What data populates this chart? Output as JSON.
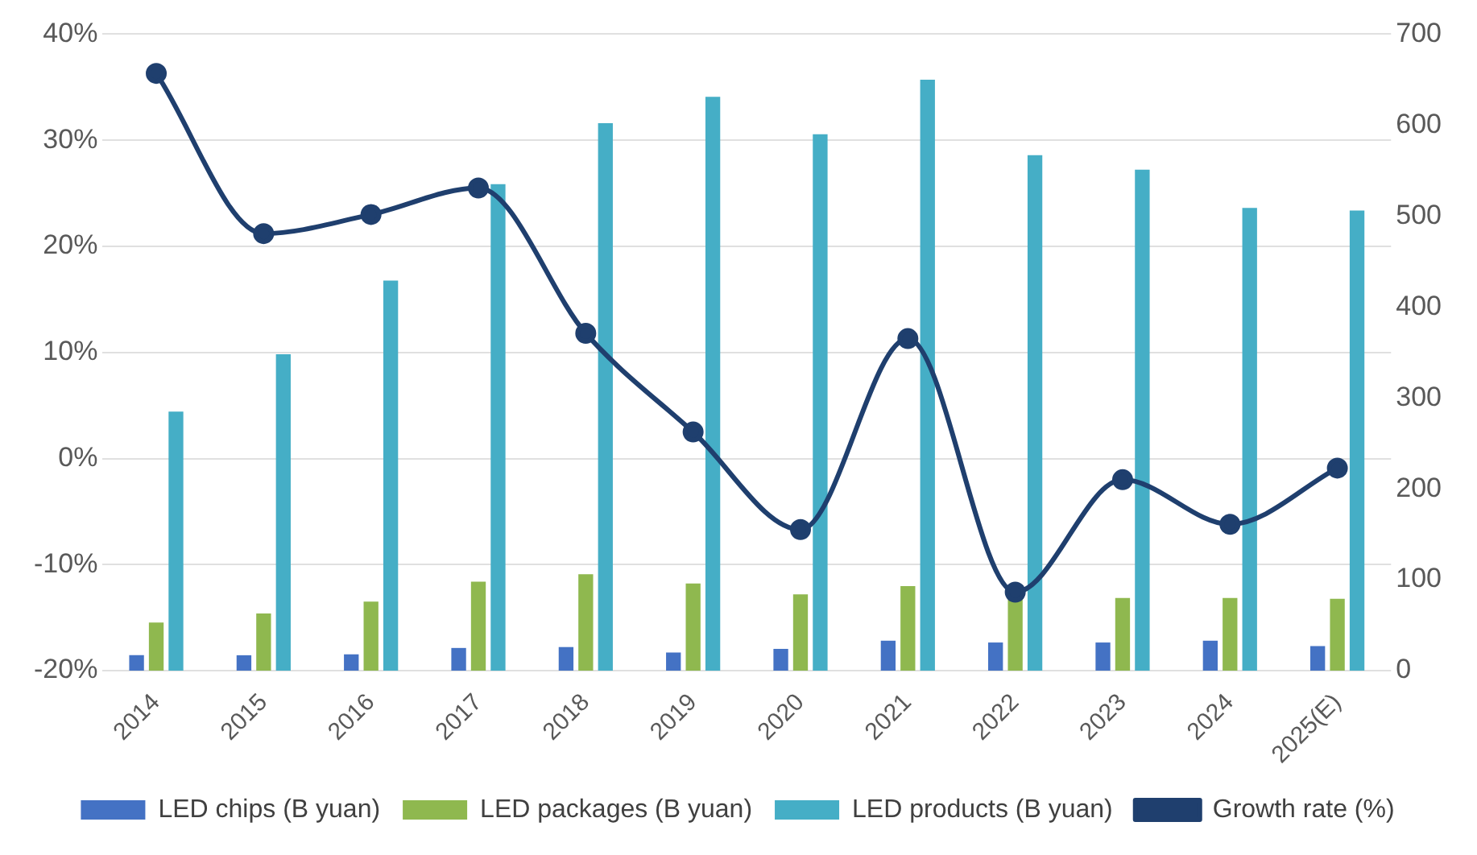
{
  "chart_data": {
    "type": "bar",
    "categories": [
      "2014",
      "2015",
      "2016",
      "2017",
      "2018",
      "2019",
      "2020",
      "2021",
      "2022",
      "2023",
      "2024",
      "2025(E)"
    ],
    "series": [
      {
        "name": "LED chips (B yuan)",
        "color": "#4472c4",
        "axis": "y2",
        "values": [
          17,
          17,
          18,
          25,
          26,
          20,
          24,
          33,
          31,
          31,
          33,
          27
        ]
      },
      {
        "name": "LED packages (B yuan)",
        "color": "#8fb84f",
        "axis": "y2",
        "values": [
          53,
          63,
          76,
          98,
          106,
          96,
          84,
          93,
          80,
          80,
          80,
          79
        ]
      },
      {
        "name": "LED products (B yuan)",
        "color": "#45aec6",
        "axis": "y2",
        "values": [
          285,
          348,
          429,
          535,
          602,
          631,
          590,
          650,
          567,
          551,
          509,
          506
        ]
      },
      {
        "name": "Growth rate (%)",
        "type": "line",
        "color": "#1f3f6e",
        "axis": "y",
        "values": [
          36.3,
          21.2,
          23,
          25.5,
          11.8,
          2.5,
          -6.7,
          11.3,
          -12.6,
          -2,
          -6.2,
          -0.9
        ]
      }
    ],
    "ylim": [
      -20,
      40
    ],
    "yticks": [
      {
        "value": -20,
        "label": "-20%"
      },
      {
        "value": -10,
        "label": "-10%"
      },
      {
        "value": 0,
        "label": "0%"
      },
      {
        "value": 10,
        "label": "10%"
      },
      {
        "value": 20,
        "label": "20%"
      },
      {
        "value": 30,
        "label": "30%"
      },
      {
        "value": 40,
        "label": "40%"
      }
    ],
    "y2lim": [
      0,
      700
    ],
    "y2ticks": [
      0,
      100,
      200,
      300,
      400,
      500,
      600,
      700
    ],
    "grid": "y",
    "legend": "bottom",
    "marker": "circle"
  }
}
